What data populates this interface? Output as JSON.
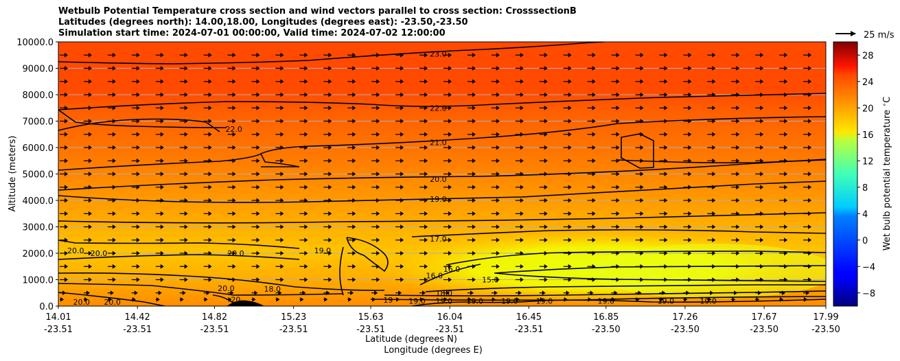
{
  "titles": {
    "line1": "Wetbulb Potential Temperature cross section and wind vectors parallel to cross section: CrosssectionB",
    "line2": "Latitudes (degrees north): 14.00,18.00, Longitudes (degrees east): -23.50,-23.50",
    "line3": "Simulation start time: 2024-07-01 00:00:00, Valid time: 2024-07-02 12:00:00"
  },
  "chart_data": {
    "type": "heatmap",
    "subtype": "cross-section filled contour with contour lines and wind vectors",
    "x_axis": {
      "label_lat": "Latitude (degrees N)",
      "label_lon": "Longitude (degrees E)",
      "tick_lat": [
        "14.01",
        "14.42",
        "14.82",
        "15.23",
        "15.63",
        "16.04",
        "16.45",
        "16.85",
        "17.26",
        "17.67",
        "17.99"
      ],
      "tick_lon": [
        "-23.51",
        "-23.51",
        "-23.51",
        "-23.51",
        "-23.51",
        "-23.51",
        "-23.51",
        "-23.50",
        "-23.50",
        "-23.50",
        "-23.50"
      ],
      "range_lat": [
        14.01,
        17.99
      ]
    },
    "y_axis": {
      "label": "Altitude (meters)",
      "ticks": [
        "0.0",
        "1000.0",
        "2000.0",
        "3000.0",
        "4000.0",
        "5000.0",
        "6000.0",
        "7000.0",
        "8000.0",
        "9000.0",
        "10000.0"
      ],
      "range": [
        0,
        10000
      ],
      "grid": true
    },
    "colorbar": {
      "label": "Wet bulb potential temperature $^\\circ$C",
      "ticks": [
        "−8",
        "−4",
        "0",
        "4",
        "8",
        "12",
        "16",
        "20",
        "24",
        "28"
      ],
      "range": [
        -10,
        30
      ],
      "colormap": "jet"
    },
    "quiver_key": {
      "label": "25 m/s"
    },
    "contour_labels": [
      {
        "text": "23.0",
        "lat": 15.98,
        "alt": 9550
      },
      {
        "text": "22.0",
        "lat": 15.98,
        "alt": 7500
      },
      {
        "text": "22.0",
        "lat": 14.92,
        "alt": 6700
      },
      {
        "text": "21.0",
        "lat": 15.98,
        "alt": 6200
      },
      {
        "text": "20.0",
        "lat": 15.98,
        "alt": 4800
      },
      {
        "text": "19.0",
        "lat": 15.98,
        "alt": 4050
      },
      {
        "text": "17.0",
        "lat": 15.98,
        "alt": 2550
      },
      {
        "text": "20.0",
        "lat": 14.1,
        "alt": 2100
      },
      {
        "text": "20.0",
        "lat": 14.22,
        "alt": 2000
      },
      {
        "text": "20.0",
        "lat": 14.93,
        "alt": 2000
      },
      {
        "text": "19.0",
        "lat": 15.38,
        "alt": 2100
      },
      {
        "text": "16.0",
        "lat": 15.96,
        "alt": 1150
      },
      {
        "text": "16.0",
        "lat": 16.05,
        "alt": 1400
      },
      {
        "text": "15.0",
        "lat": 16.25,
        "alt": 1000
      },
      {
        "text": "20.0",
        "lat": 14.88,
        "alt": 680
      },
      {
        "text": "18.0",
        "lat": 15.12,
        "alt": 650
      },
      {
        "text": "20",
        "lat": 14.93,
        "alt": 250
      },
      {
        "text": "18.0",
        "lat": 16.01,
        "alt": 500
      },
      {
        "text": "20.0",
        "lat": 14.13,
        "alt": 150
      },
      {
        "text": "20.0",
        "lat": 14.29,
        "alt": 150
      },
      {
        "text": "19",
        "lat": 15.72,
        "alt": 230
      },
      {
        "text": "19.0",
        "lat": 15.87,
        "alt": 200
      },
      {
        "text": "19.0",
        "lat": 16.01,
        "alt": 200
      },
      {
        "text": "19.0",
        "lat": 16.17,
        "alt": 200
      },
      {
        "text": "19.0",
        "lat": 16.35,
        "alt": 200
      },
      {
        "text": "19.0",
        "lat": 16.53,
        "alt": 200
      },
      {
        "text": "19.0",
        "lat": 16.85,
        "alt": 200
      },
      {
        "text": "19.0",
        "lat": 17.16,
        "alt": 200
      },
      {
        "text": "19.0",
        "lat": 17.38,
        "alt": 200
      }
    ],
    "wind_rows_alt": [
      250,
      500,
      1000,
      1500,
      2000,
      2500,
      3000,
      3500,
      4000,
      4500,
      5000,
      5500,
      6000,
      6500,
      7000,
      7500,
      8000,
      8500,
      9000,
      9500
    ],
    "wind_columns": 32
  }
}
